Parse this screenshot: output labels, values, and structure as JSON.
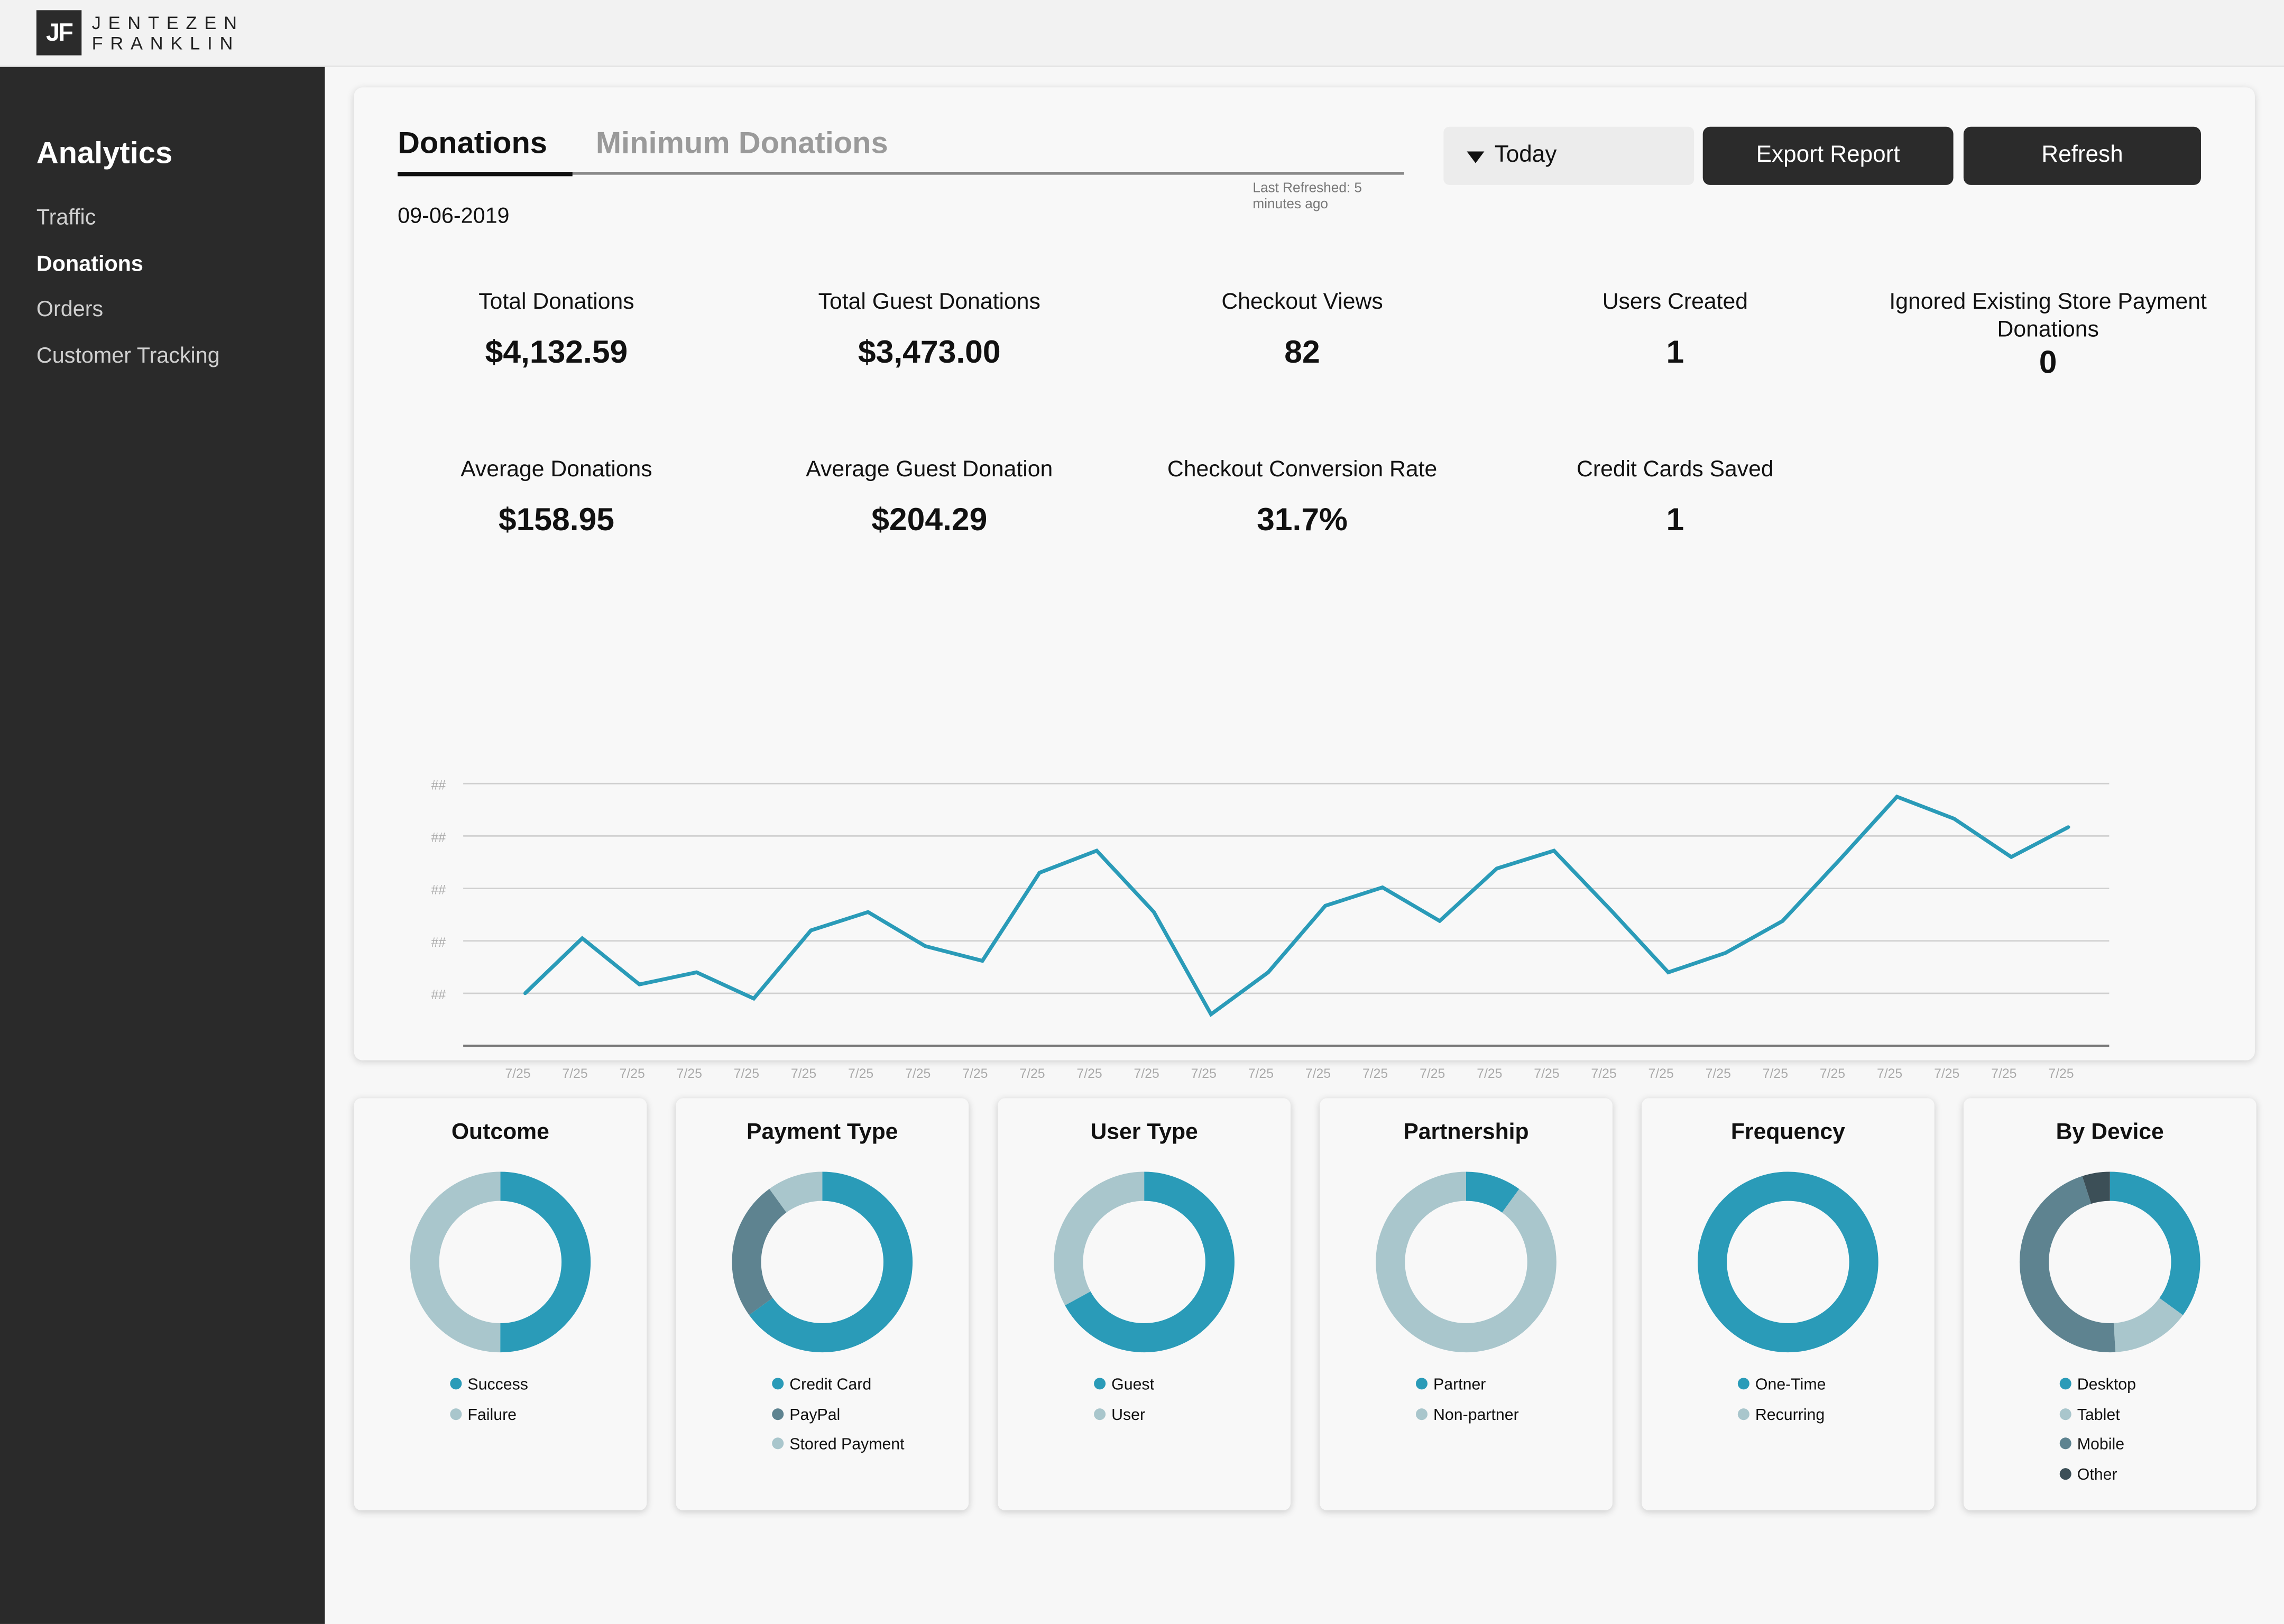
{
  "brand": {
    "mark": "JF",
    "line1": "JENTEZEN",
    "line2": "FRANKLIN"
  },
  "sidebar": {
    "title": "Analytics",
    "items": [
      {
        "label": "Traffic",
        "active": false
      },
      {
        "label": "Donations",
        "active": true
      },
      {
        "label": "Orders",
        "active": false
      },
      {
        "label": "Customer Tracking",
        "active": false
      }
    ]
  },
  "header": {
    "tabs": [
      "Donations",
      "Minimum Donations"
    ],
    "last_refreshed": "Last Refreshed: 5 minutes ago",
    "range_select": "Today",
    "export_label": "Export Report",
    "refresh_label": "Refresh",
    "date": "09-06-2019"
  },
  "metrics": [
    {
      "label": "Total Donations",
      "value": "$4,132.59"
    },
    {
      "label": "Total Guest Donations",
      "value": "$3,473.00"
    },
    {
      "label": "Checkout Views",
      "value": "82"
    },
    {
      "label": "Users Created",
      "value": "1"
    },
    {
      "label": "Ignored Existing Store Payment Donations",
      "value": "0"
    },
    {
      "label": "Average Donations",
      "value": "$158.95"
    },
    {
      "label": "Average Guest Donation",
      "value": "$204.29"
    },
    {
      "label": "Checkout Conversion Rate",
      "value": "31.7%"
    },
    {
      "label": "Credit Cards Saved",
      "value": "1"
    }
  ],
  "colors": {
    "accent": "#2a9bb8",
    "slate": "#5e8390",
    "light": "#a9c6cc",
    "dark": "#3c4f57",
    "sidebar_bg": "#2a2a2a"
  },
  "chart_data": {
    "type": "line",
    "title": "",
    "xlabel": "",
    "ylabel": "",
    "y_tick_labels": [
      "##",
      "##",
      "##",
      "##",
      "##"
    ],
    "categories": [
      "7/25",
      "7/25",
      "7/25",
      "7/25",
      "7/25",
      "7/25",
      "7/25",
      "7/25",
      "7/25",
      "7/25",
      "7/25",
      "7/25",
      "7/25",
      "7/25",
      "7/25",
      "7/25",
      "7/25",
      "7/25",
      "7/25",
      "7/25",
      "7/25",
      "7/25",
      "7/25",
      "7/25",
      "7/25",
      "7/25",
      "7/25",
      "7/25"
    ],
    "ylim": [
      0,
      5
    ],
    "grid": true,
    "legend": false,
    "series": [
      {
        "values": [
          1.0,
          2.05,
          1.17,
          1.4,
          0.9,
          2.2,
          2.55,
          1.9,
          1.62,
          3.3,
          3.72,
          2.55,
          0.6,
          1.4,
          2.67,
          3.02,
          2.38,
          3.38,
          3.72,
          2.58,
          1.4,
          1.77,
          2.38,
          3.55,
          4.75,
          4.33,
          3.6,
          4.17
        ]
      }
    ]
  },
  "donuts": [
    {
      "title": "Outcome",
      "segments": [
        {
          "label": "Success",
          "value": 50,
          "color": "#2a9bb8"
        },
        {
          "label": "Failure",
          "value": 50,
          "color": "#a9c6cc"
        }
      ]
    },
    {
      "title": "Payment Type",
      "segments": [
        {
          "label": "Credit Card",
          "value": 65,
          "color": "#2a9bb8"
        },
        {
          "label": "PayPal",
          "value": 25,
          "color": "#5e8390"
        },
        {
          "label": "Stored Payment",
          "value": 10,
          "color": "#a9c6cc"
        }
      ]
    },
    {
      "title": "User Type",
      "segments": [
        {
          "label": "Guest",
          "value": 67,
          "color": "#2a9bb8"
        },
        {
          "label": "User",
          "value": 33,
          "color": "#a9c6cc"
        }
      ]
    },
    {
      "title": "Partnership",
      "segments": [
        {
          "label": "Partner",
          "value": 10,
          "color": "#2a9bb8"
        },
        {
          "label": "Non-partner",
          "value": 90,
          "color": "#a9c6cc"
        }
      ]
    },
    {
      "title": "Frequency",
      "segments": [
        {
          "label": "One-Time",
          "value": 100,
          "color": "#2a9bb8"
        },
        {
          "label": "Recurring",
          "value": 0,
          "color": "#a9c6cc"
        }
      ]
    },
    {
      "title": "By Device",
      "segments": [
        {
          "label": "Desktop",
          "value": 35,
          "color": "#2a9bb8"
        },
        {
          "label": "Tablet",
          "value": 14,
          "color": "#a9c6cc"
        },
        {
          "label": "Mobile",
          "value": 46,
          "color": "#5e8390"
        },
        {
          "label": "Other",
          "value": 5,
          "color": "#3c4f57"
        }
      ]
    }
  ]
}
